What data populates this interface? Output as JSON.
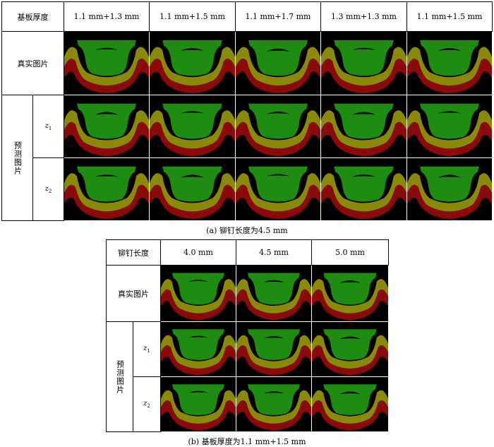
{
  "table_a": {
    "header_label": "基板厚度",
    "columns": [
      "1.1 mm+1.3 mm",
      "1.1 mm+1.5 mm",
      "1.1 mm+1.7 mm",
      "1.3 mm+1.3 mm",
      "1.1 mm+1.5 mm"
    ],
    "row_real": "真实图片",
    "row_pred": "预测图片",
    "z1": "z",
    "z1_sub": "1",
    "z2": "z",
    "z2_sub": "2",
    "caption": "(a)   铆钉长度为4.5 mm"
  },
  "table_b": {
    "header_label": "铆钉长度",
    "columns": [
      "4.0 mm",
      "4.5 mm",
      "5.0 mm"
    ],
    "row_real": "真实图片",
    "row_pred": "预测图片",
    "z1": "z",
    "z1_sub": "1",
    "z2": "z",
    "z2_sub": "2",
    "caption": "(b)   基板厚度为1.1 mm+1.5 mm"
  },
  "colors": {
    "background": "#000000",
    "rivet": "#1e8c10",
    "upper_sheet": "#8b8a08",
    "lower_sheet": "#8a0a0a"
  }
}
